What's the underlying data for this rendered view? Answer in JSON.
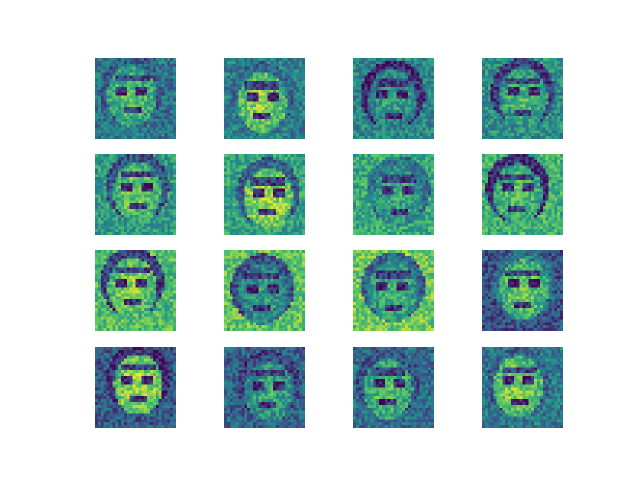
{
  "figure": {
    "grid": {
      "rows": 4,
      "cols": 4
    },
    "colormap": "viridis",
    "colormap_stops": [
      "#440154",
      "#3b528b",
      "#21918c",
      "#5ec962",
      "#fde725"
    ],
    "axes_visible": false,
    "tiles": [
      {
        "row": 1,
        "col": 1,
        "subject": "face-sample"
      },
      {
        "row": 1,
        "col": 2,
        "subject": "face-sample"
      },
      {
        "row": 1,
        "col": 3,
        "subject": "face-sample"
      },
      {
        "row": 1,
        "col": 4,
        "subject": "face-sample"
      },
      {
        "row": 2,
        "col": 1,
        "subject": "face-sample"
      },
      {
        "row": 2,
        "col": 2,
        "subject": "face-sample"
      },
      {
        "row": 2,
        "col": 3,
        "subject": "face-sample"
      },
      {
        "row": 2,
        "col": 4,
        "subject": "face-sample"
      },
      {
        "row": 3,
        "col": 1,
        "subject": "face-sample"
      },
      {
        "row": 3,
        "col": 2,
        "subject": "face-sample"
      },
      {
        "row": 3,
        "col": 3,
        "subject": "face-sample"
      },
      {
        "row": 3,
        "col": 4,
        "subject": "face-sample"
      },
      {
        "row": 4,
        "col": 1,
        "subject": "face-sample"
      },
      {
        "row": 4,
        "col": 2,
        "subject": "face-sample"
      },
      {
        "row": 4,
        "col": 3,
        "subject": "face-sample"
      },
      {
        "row": 4,
        "col": 4,
        "subject": "face-sample"
      }
    ]
  }
}
